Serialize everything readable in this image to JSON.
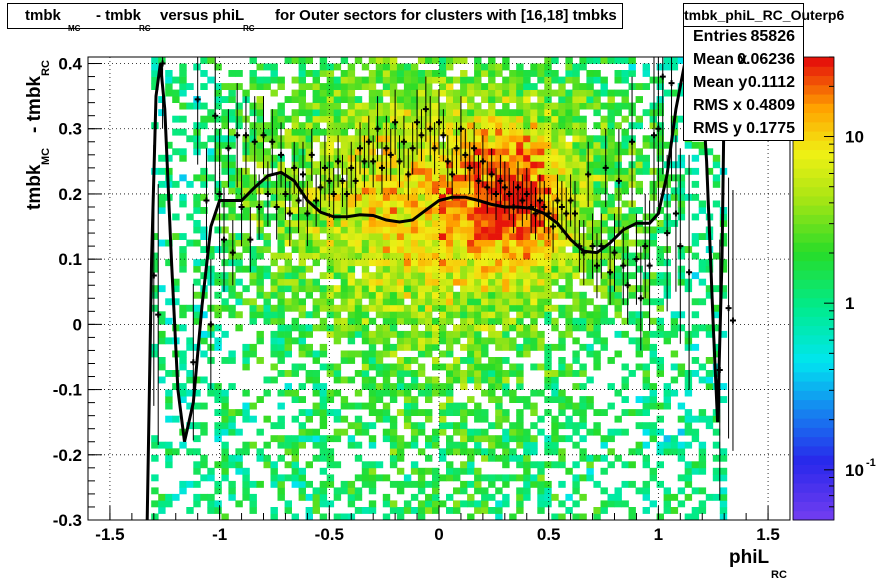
{
  "title": {
    "part1": "tmbk",
    "sub1": "MC",
    "part2": "- tmbk",
    "sub2": "RC",
    "part3": "versus phiL",
    "sub3": "RC",
    "part4": "for Outer sectors for clusters with [16,18] tmbks"
  },
  "stats": {
    "name": "tmbk_phiL_RC_Outerp6",
    "rows": [
      {
        "label": "Entries",
        "value": "85826"
      },
      {
        "label": "Mean x",
        "value": "0.06236"
      },
      {
        "label": "Mean y",
        "value": "0.1112"
      },
      {
        "label": "RMS x",
        "value": "0.4809"
      },
      {
        "label": "RMS y",
        "value": "0.1775"
      }
    ]
  },
  "chart_data": {
    "type": "heatmap",
    "xlabel": "phiL",
    "xlabel_sub": "RC",
    "ylabel": "tmbk",
    "ylabel_sub1": "MC",
    "ylabel_mid": "- tmbk",
    "ylabel_sub2": "RC",
    "xlim": [
      -1.6,
      1.6
    ],
    "ylim": [
      -0.3,
      0.41
    ],
    "x_ticks": [
      {
        "v": -1.5,
        "label": "-1.5"
      },
      {
        "v": -1,
        "label": "-1"
      },
      {
        "v": -0.5,
        "label": "-0.5"
      },
      {
        "v": 0,
        "label": "0"
      },
      {
        "v": 0.5,
        "label": "0.5"
      },
      {
        "v": 1,
        "label": "1"
      },
      {
        "v": 1.5,
        "label": "1.5"
      }
    ],
    "y_ticks": [
      {
        "v": -0.3,
        "label": "-0.3"
      },
      {
        "v": -0.2,
        "label": "-0.2"
      },
      {
        "v": -0.1,
        "label": "-0.1"
      },
      {
        "v": 0,
        "label": "0"
      },
      {
        "v": 0.1,
        "label": "0.1"
      },
      {
        "v": 0.2,
        "label": "0.2"
      },
      {
        "v": 0.3,
        "label": "0.3"
      },
      {
        "v": 0.4,
        "label": "0.4"
      }
    ],
    "grid": true,
    "color_scale": {
      "type": "log",
      "range": [
        0.05,
        30
      ],
      "labels": [
        {
          "v": 10,
          "label": "10"
        },
        {
          "v": 1,
          "label": "1"
        },
        {
          "v": 0.1,
          "label": "10",
          "exp": "-1"
        }
      ]
    },
    "profile_points": [
      [
        -1.3,
        0.075,
        0.2
      ],
      [
        -1.28,
        0.015,
        0.2
      ],
      [
        -1.26,
        0.4,
        0.1
      ],
      [
        -1.12,
        -0.058,
        0.12
      ],
      [
        -1.1,
        0.345,
        0.1
      ],
      [
        -1.06,
        0.19,
        0.08
      ],
      [
        -1.04,
        0.0,
        0.1
      ],
      [
        -1.02,
        0.32,
        0.12
      ],
      [
        -1.0,
        0.2,
        0.1
      ],
      [
        -0.98,
        0.13,
        0.08
      ],
      [
        -0.96,
        0.27,
        0.06
      ],
      [
        -0.94,
        0.11,
        0.05
      ],
      [
        -0.92,
        0.29,
        0.08
      ],
      [
        -0.9,
        0.18,
        0.06
      ],
      [
        -0.88,
        0.29,
        0.06
      ],
      [
        -0.86,
        0.13,
        0.05
      ],
      [
        -0.84,
        0.28,
        0.07
      ],
      [
        -0.82,
        0.18,
        0.05
      ],
      [
        -0.8,
        0.29,
        0.06
      ],
      [
        -0.78,
        0.2,
        0.05
      ],
      [
        -0.76,
        0.28,
        0.05
      ],
      [
        -0.74,
        0.18,
        0.05
      ],
      [
        -0.72,
        0.26,
        0.05
      ],
      [
        -0.7,
        0.2,
        0.04
      ],
      [
        -0.68,
        0.17,
        0.05
      ],
      [
        -0.66,
        0.24,
        0.04
      ],
      [
        -0.64,
        0.19,
        0.05
      ],
      [
        -0.62,
        0.23,
        0.05
      ],
      [
        -0.6,
        0.17,
        0.05
      ],
      [
        -0.58,
        0.26,
        0.04
      ],
      [
        -0.56,
        0.19,
        0.04
      ],
      [
        -0.54,
        0.21,
        0.04
      ],
      [
        -0.52,
        0.24,
        0.05
      ],
      [
        -0.5,
        0.22,
        0.04
      ],
      [
        -0.48,
        0.2,
        0.04
      ],
      [
        -0.46,
        0.25,
        0.04
      ],
      [
        -0.44,
        0.22,
        0.04
      ],
      [
        -0.42,
        0.2,
        0.04
      ],
      [
        -0.4,
        0.24,
        0.04
      ],
      [
        -0.38,
        0.22,
        0.04
      ],
      [
        -0.36,
        0.27,
        0.04
      ],
      [
        -0.34,
        0.25,
        0.04
      ],
      [
        -0.32,
        0.28,
        0.04
      ],
      [
        -0.3,
        0.25,
        0.04
      ],
      [
        -0.28,
        0.3,
        0.05
      ],
      [
        -0.26,
        0.24,
        0.04
      ],
      [
        -0.24,
        0.27,
        0.05
      ],
      [
        -0.22,
        0.26,
        0.04
      ],
      [
        -0.2,
        0.31,
        0.05
      ],
      [
        -0.18,
        0.25,
        0.04
      ],
      [
        -0.16,
        0.28,
        0.04
      ],
      [
        -0.14,
        0.23,
        0.04
      ],
      [
        -0.12,
        0.27,
        0.04
      ],
      [
        -0.1,
        0.31,
        0.05
      ],
      [
        -0.08,
        0.29,
        0.04
      ],
      [
        -0.06,
        0.33,
        0.05
      ],
      [
        -0.04,
        0.3,
        0.05
      ],
      [
        -0.02,
        0.27,
        0.04
      ],
      [
        0.0,
        0.31,
        0.05
      ],
      [
        0.02,
        0.29,
        0.04
      ],
      [
        0.04,
        0.25,
        0.04
      ],
      [
        0.06,
        0.23,
        0.04
      ],
      [
        0.08,
        0.27,
        0.04
      ],
      [
        0.1,
        0.3,
        0.05
      ],
      [
        0.12,
        0.26,
        0.04
      ],
      [
        0.14,
        0.24,
        0.04
      ],
      [
        0.16,
        0.27,
        0.04
      ],
      [
        0.18,
        0.22,
        0.04
      ],
      [
        0.2,
        0.25,
        0.04
      ],
      [
        0.22,
        0.21,
        0.04
      ],
      [
        0.24,
        0.23,
        0.04
      ],
      [
        0.26,
        0.2,
        0.04
      ],
      [
        0.28,
        0.22,
        0.04
      ],
      [
        0.3,
        0.21,
        0.04
      ],
      [
        0.32,
        0.2,
        0.04
      ],
      [
        0.34,
        0.18,
        0.04
      ],
      [
        0.36,
        0.21,
        0.04
      ],
      [
        0.38,
        0.19,
        0.04
      ],
      [
        0.4,
        0.2,
        0.04
      ],
      [
        0.42,
        0.18,
        0.04
      ],
      [
        0.44,
        0.17,
        0.04
      ],
      [
        0.46,
        0.19,
        0.04
      ],
      [
        0.48,
        0.18,
        0.04
      ],
      [
        0.5,
        0.17,
        0.04
      ],
      [
        0.52,
        0.15,
        0.04
      ],
      [
        0.54,
        0.19,
        0.04
      ],
      [
        0.56,
        0.18,
        0.04
      ],
      [
        0.58,
        0.17,
        0.04
      ],
      [
        0.6,
        0.19,
        0.04
      ],
      [
        0.62,
        0.17,
        0.05
      ],
      [
        0.64,
        0.12,
        0.04
      ],
      [
        0.66,
        0.11,
        0.05
      ],
      [
        0.68,
        0.23,
        0.05
      ],
      [
        0.7,
        0.12,
        0.05
      ],
      [
        0.72,
        0.09,
        0.05
      ],
      [
        0.74,
        0.12,
        0.05
      ],
      [
        0.76,
        0.24,
        0.06
      ],
      [
        0.78,
        0.08,
        0.05
      ],
      [
        0.8,
        0.11,
        0.06
      ],
      [
        0.82,
        0.22,
        0.08
      ],
      [
        0.84,
        0.09,
        0.06
      ],
      [
        0.86,
        0.06,
        0.06
      ],
      [
        0.88,
        0.28,
        0.1
      ],
      [
        0.9,
        0.1,
        0.07
      ],
      [
        0.92,
        0.04,
        0.08
      ],
      [
        0.94,
        0.12,
        0.08
      ],
      [
        0.96,
        0.09,
        0.1
      ],
      [
        0.98,
        0.29,
        0.12
      ],
      [
        1.0,
        0.3,
        0.12
      ],
      [
        1.02,
        0.38,
        0.15
      ],
      [
        1.04,
        0.14,
        0.12
      ],
      [
        1.06,
        0.37,
        0.15
      ],
      [
        1.08,
        0.17,
        0.12
      ],
      [
        1.1,
        0.12,
        0.15
      ],
      [
        1.14,
        0.08,
        0.18
      ],
      [
        1.28,
        -0.07,
        0.2
      ],
      [
        1.32,
        0.025,
        0.2
      ],
      [
        1.34,
        0.006,
        0.2
      ]
    ],
    "fit_curve": [
      [
        -1.33,
        -0.3
      ],
      [
        -1.31,
        0.1
      ],
      [
        -1.29,
        0.35
      ],
      [
        -1.27,
        0.4
      ],
      [
        -1.25,
        0.33
      ],
      [
        -1.22,
        0.1
      ],
      [
        -1.19,
        -0.1
      ],
      [
        -1.16,
        -0.18
      ],
      [
        -1.12,
        -0.12
      ],
      [
        -1.08,
        0.03
      ],
      [
        -1.04,
        0.15
      ],
      [
        -1.0,
        0.19
      ],
      [
        -0.96,
        0.19
      ],
      [
        -0.9,
        0.19
      ],
      [
        -0.84,
        0.21
      ],
      [
        -0.78,
        0.228
      ],
      [
        -0.72,
        0.233
      ],
      [
        -0.66,
        0.22
      ],
      [
        -0.6,
        0.19
      ],
      [
        -0.54,
        0.172
      ],
      [
        -0.48,
        0.165
      ],
      [
        -0.42,
        0.165
      ],
      [
        -0.36,
        0.168
      ],
      [
        -0.3,
        0.167
      ],
      [
        -0.24,
        0.16
      ],
      [
        -0.18,
        0.157
      ],
      [
        -0.12,
        0.16
      ],
      [
        -0.06,
        0.175
      ],
      [
        0.0,
        0.19
      ],
      [
        0.06,
        0.195
      ],
      [
        0.12,
        0.195
      ],
      [
        0.18,
        0.19
      ],
      [
        0.24,
        0.184
      ],
      [
        0.3,
        0.18
      ],
      [
        0.36,
        0.18
      ],
      [
        0.42,
        0.178
      ],
      [
        0.48,
        0.17
      ],
      [
        0.54,
        0.155
      ],
      [
        0.6,
        0.13
      ],
      [
        0.66,
        0.112
      ],
      [
        0.72,
        0.11
      ],
      [
        0.78,
        0.125
      ],
      [
        0.84,
        0.145
      ],
      [
        0.9,
        0.155
      ],
      [
        0.96,
        0.155
      ],
      [
        1.0,
        0.17
      ],
      [
        1.04,
        0.23
      ],
      [
        1.08,
        0.33
      ],
      [
        1.12,
        0.4
      ],
      [
        1.15,
        0.43
      ],
      [
        1.19,
        0.41
      ],
      [
        1.22,
        0.25
      ],
      [
        1.25,
        0.0
      ],
      [
        1.27,
        -0.15
      ],
      [
        1.29,
        0.1
      ],
      [
        1.3,
        0.35
      ],
      [
        1.31,
        0.43
      ]
    ]
  }
}
